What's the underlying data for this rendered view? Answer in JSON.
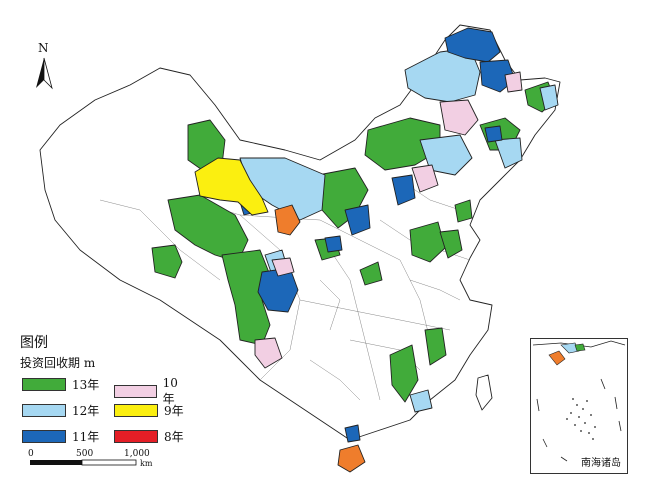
{
  "north_label": "N",
  "legend": {
    "title": "图例",
    "subtitle": "投资回收期 m",
    "items": [
      {
        "label": "13年",
        "color": "#41ab3a"
      },
      {
        "label": "10年",
        "color": "#f2cfe3"
      },
      {
        "label": "12年",
        "color": "#a6d8f2"
      },
      {
        "label": "9年",
        "color": "#fbef10"
      },
      {
        "label": "11年",
        "color": "#1c67b8"
      },
      {
        "label": "8年",
        "color": "#e41e26"
      }
    ]
  },
  "scale": {
    "ticks": [
      "0",
      "500",
      "1,000"
    ],
    "unit": "km"
  },
  "inset": {
    "label": "南海诸岛"
  },
  "colors": {
    "other": "#ef7d2c",
    "none": "#ffffff",
    "background": "#ffffff"
  }
}
